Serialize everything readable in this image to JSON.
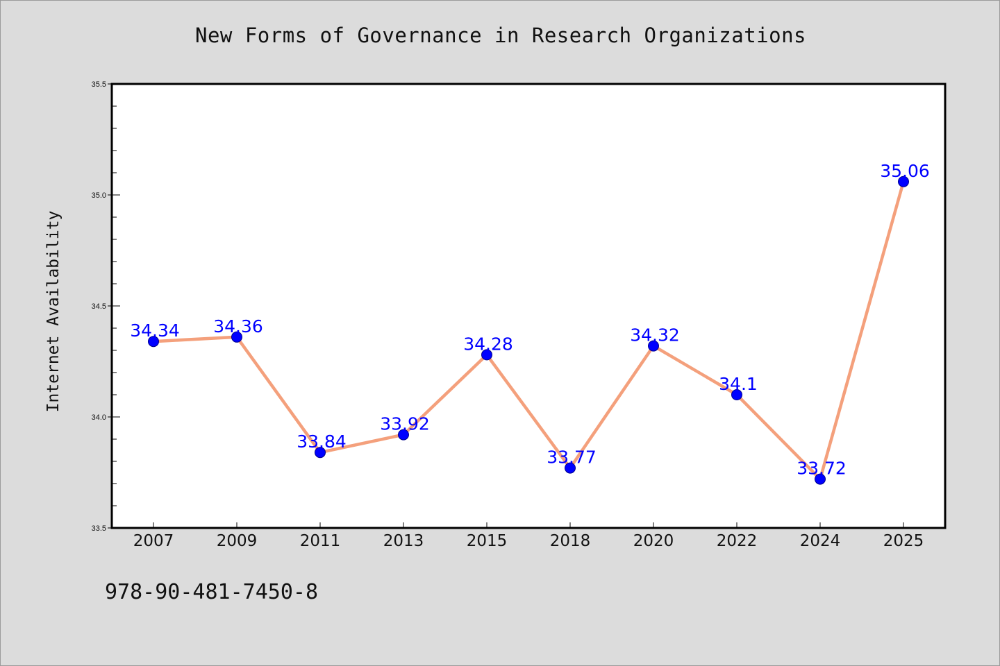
{
  "page": {
    "background": "#dcdcdc",
    "footer_code": "978-90-481-7450-8"
  },
  "chart_data": {
    "type": "line",
    "title": "New Forms of Governance in Research Organizations",
    "xlabel": "",
    "ylabel": "Internet Availability",
    "categories": [
      "2007",
      "2009",
      "2011",
      "2013",
      "2015",
      "2018",
      "2020",
      "2022",
      "2024",
      "2025"
    ],
    "series": [
      {
        "values": [
          34.34,
          34.36,
          33.84,
          33.92,
          34.28,
          33.77,
          34.32,
          34.1,
          33.72,
          35.06
        ],
        "labels": [
          "34.34",
          "34.36",
          "33.84",
          "33.92",
          "34.28",
          "33.77",
          "34.32",
          "34.1",
          "33.72",
          "35.06"
        ],
        "line_color": "#f4a07c",
        "marker_color": "#0000ff"
      }
    ],
    "ylim": [
      33.5,
      35.5
    ],
    "yticks": [
      "33.5",
      "34.0",
      "34.5",
      "35.0",
      "35.5"
    ],
    "grid": false,
    "legend": "none"
  }
}
